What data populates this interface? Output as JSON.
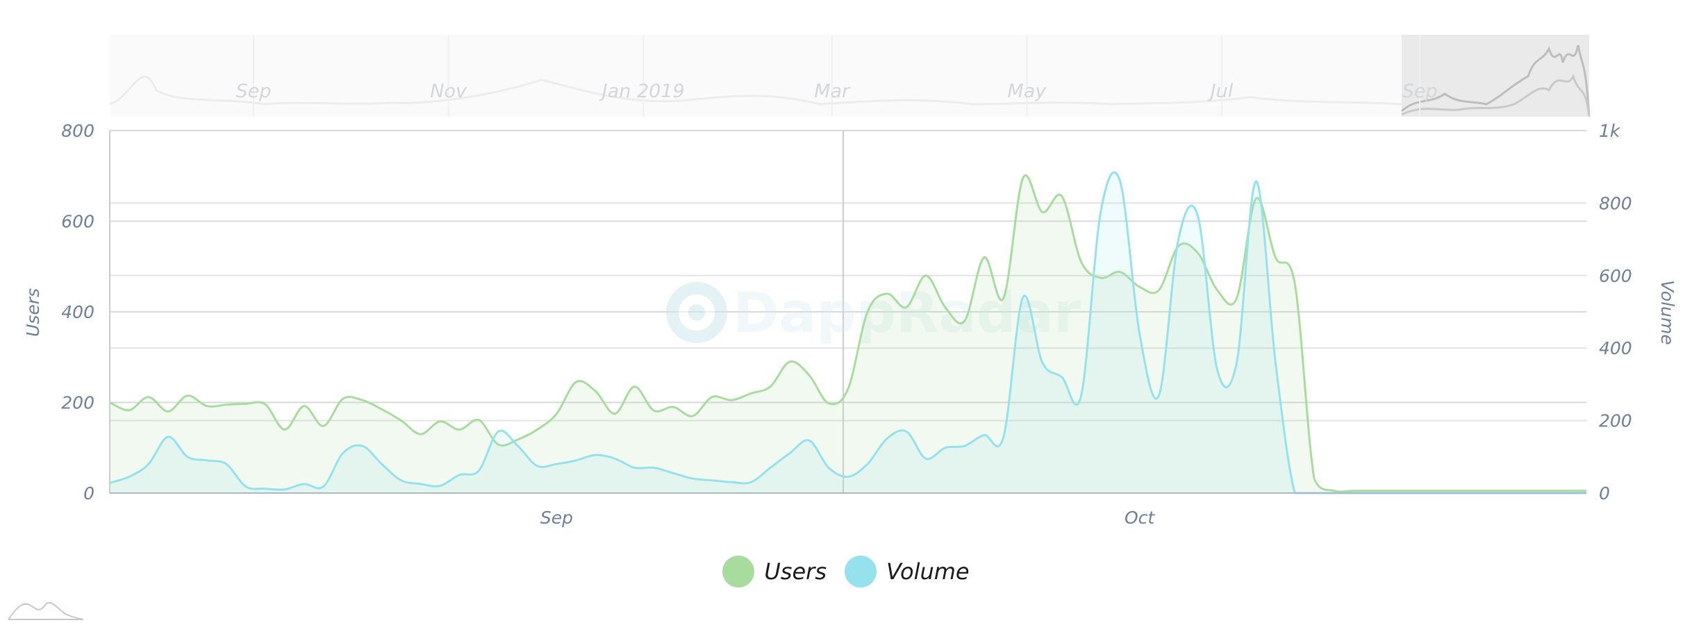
{
  "chart_data": {
    "type": "area",
    "x": [
      "2019-08-09",
      "2019-08-10",
      "2019-08-11",
      "2019-08-12",
      "2019-08-13",
      "2019-08-14",
      "2019-08-15",
      "2019-08-16",
      "2019-08-17",
      "2019-08-18",
      "2019-08-19",
      "2019-08-20",
      "2019-08-21",
      "2019-08-22",
      "2019-08-23",
      "2019-08-24",
      "2019-08-25",
      "2019-08-26",
      "2019-08-27",
      "2019-08-28",
      "2019-08-29",
      "2019-08-30",
      "2019-08-31",
      "2019-09-01",
      "2019-09-02",
      "2019-09-03",
      "2019-09-04",
      "2019-09-05",
      "2019-09-06",
      "2019-09-07",
      "2019-09-08",
      "2019-09-09",
      "2019-09-10",
      "2019-09-11",
      "2019-09-12",
      "2019-09-13",
      "2019-09-14",
      "2019-09-15",
      "2019-09-16",
      "2019-09-17",
      "2019-09-18",
      "2019-09-19",
      "2019-09-20",
      "2019-09-21",
      "2019-09-22",
      "2019-09-23",
      "2019-09-24",
      "2019-09-25",
      "2019-09-26",
      "2019-09-27",
      "2019-09-28",
      "2019-09-29",
      "2019-09-30",
      "2019-10-01",
      "2019-10-02",
      "2019-10-03",
      "2019-10-04",
      "2019-10-05",
      "2019-10-06",
      "2019-10-07",
      "2019-10-08",
      "2019-10-09",
      "2019-10-10",
      "2019-10-11",
      "2019-10-12",
      "2019-10-13",
      "2019-10-14",
      "2019-10-15",
      "2019-10-16",
      "2019-10-17",
      "2019-10-18",
      "2019-10-19",
      "2019-10-20",
      "2019-10-21",
      "2019-10-22",
      "2019-10-23",
      "2019-10-24"
    ],
    "series": [
      {
        "name": "Users",
        "axis": "left",
        "color": "#a8dc9f",
        "values": [
          200,
          183,
          212,
          180,
          215,
          192,
          195,
          197,
          196,
          140,
          192,
          148,
          208,
          205,
          185,
          160,
          130,
          158,
          140,
          161,
          107,
          118,
          140,
          175,
          245,
          225,
          175,
          235,
          182,
          190,
          170,
          212,
          205,
          220,
          235,
          290,
          260,
          198,
          230,
          400,
          440,
          410,
          480,
          410,
          380,
          520,
          430,
          695,
          620,
          655,
          510,
          475,
          488,
          455,
          448,
          545,
          530,
          448,
          430,
          650,
          520,
          460,
          30,
          5,
          5,
          5,
          5,
          5,
          5,
          5,
          5,
          5,
          5,
          5,
          5,
          5,
          5
        ]
      },
      {
        "name": "Volume",
        "axis": "right",
        "color": "#95e1ec",
        "values": [
          28,
          45,
          80,
          155,
          100,
          90,
          80,
          18,
          12,
          10,
          25,
          18,
          110,
          130,
          80,
          35,
          25,
          20,
          50,
          62,
          170,
          130,
          75,
          80,
          90,
          105,
          95,
          70,
          70,
          55,
          40,
          35,
          30,
          30,
          70,
          110,
          145,
          70,
          45,
          80,
          150,
          170,
          95,
          125,
          130,
          160,
          155,
          540,
          360,
          320,
          270,
          775,
          860,
          440,
          270,
          700,
          765,
          340,
          360,
          860,
          360,
          0,
          0,
          0,
          0,
          0,
          0,
          0,
          0,
          0,
          0,
          0,
          0,
          0,
          0,
          0,
          0
        ]
      }
    ],
    "yaxis_left": {
      "title": "Users",
      "min": 0,
      "max": 800,
      "ticks": [
        "0",
        "200",
        "400",
        "600",
        "800"
      ]
    },
    "yaxis_right": {
      "title": "Volume",
      "min": 0,
      "max": 1000,
      "ticks": [
        "0",
        "200",
        "400",
        "600",
        "800",
        "1k"
      ]
    },
    "xaxis_ticks": [
      "Sep",
      "Oct"
    ],
    "navigator_ticks": [
      "Sep",
      "Nov",
      "Jan 2019",
      "Mar",
      "May",
      "Jul",
      "Sep"
    ],
    "legend": {
      "position": "bottom-center",
      "items": [
        "Users",
        "Volume"
      ]
    },
    "grid": true
  },
  "watermark": {
    "text": "DappRadar"
  }
}
